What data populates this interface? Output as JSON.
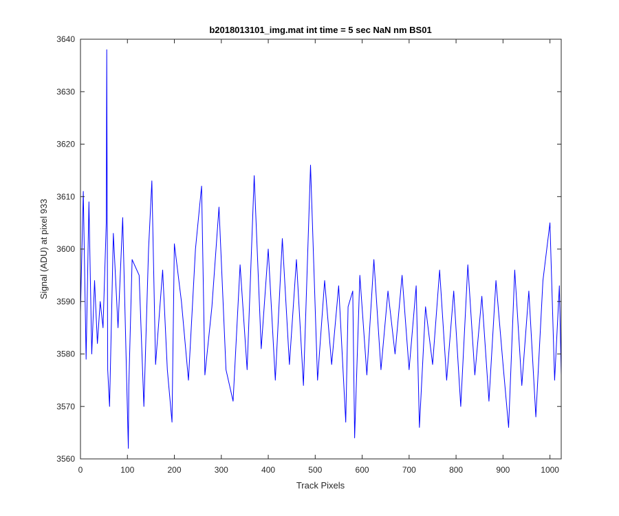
{
  "chart_data": {
    "type": "line",
    "title": "b2018013101_img.mat int time = 5 sec  NaN nm BS01",
    "xlabel": "Track Pixels",
    "ylabel": "Signal (ADU) at pixel 933",
    "xlim": [
      0,
      1024
    ],
    "ylim": [
      3560,
      3640
    ],
    "xticks": [
      0,
      100,
      200,
      300,
      400,
      500,
      600,
      700,
      800,
      900,
      1000
    ],
    "yticks": [
      3560,
      3570,
      3580,
      3590,
      3600,
      3610,
      3620,
      3630,
      3640
    ],
    "grid": false,
    "legend": "none",
    "line_color": "#0000ff",
    "series": [
      {
        "x": [
          0,
          6,
          12,
          18,
          24,
          30,
          36,
          42,
          48,
          55,
          56,
          58,
          62,
          70,
          80,
          90,
          102,
          103,
          110,
          125,
          135,
          145,
          152,
          160,
          175,
          185,
          195,
          200,
          215,
          230,
          245,
          258,
          265,
          280,
          295,
          310,
          325,
          340,
          355,
          370,
          385,
          400,
          415,
          430,
          445,
          460,
          475,
          490,
          505,
          520,
          535,
          550,
          565,
          570,
          580,
          584,
          595,
          610,
          625,
          640,
          655,
          670,
          685,
          700,
          715,
          722,
          735,
          750,
          765,
          780,
          795,
          810,
          825,
          840,
          855,
          870,
          885,
          900,
          912,
          925,
          940,
          955,
          970,
          985,
          1000,
          1010,
          1020,
          1024
        ],
        "y": [
          3588,
          3611,
          3579,
          3609,
          3580,
          3594,
          3582,
          3590,
          3585,
          3605,
          3638,
          3577,
          3570,
          3603,
          3585,
          3606,
          3562,
          3574,
          3598,
          3595,
          3570,
          3600,
          3613,
          3578,
          3596,
          3577,
          3567,
          3601,
          3590,
          3575,
          3600,
          3612,
          3576,
          3589,
          3608,
          3577,
          3571,
          3597,
          3577,
          3614,
          3581,
          3600,
          3575,
          3602,
          3578,
          3598,
          3574,
          3616,
          3575,
          3594,
          3578,
          3593,
          3567,
          3589,
          3592,
          3564,
          3595,
          3576,
          3598,
          3577,
          3592,
          3580,
          3595,
          3577,
          3593,
          3566,
          3589,
          3578,
          3596,
          3575,
          3592,
          3570,
          3597,
          3576,
          3591,
          3571,
          3594,
          3578,
          3566,
          3596,
          3574,
          3592,
          3568,
          3594,
          3605,
          3575,
          3593,
          3576
        ]
      }
    ]
  }
}
